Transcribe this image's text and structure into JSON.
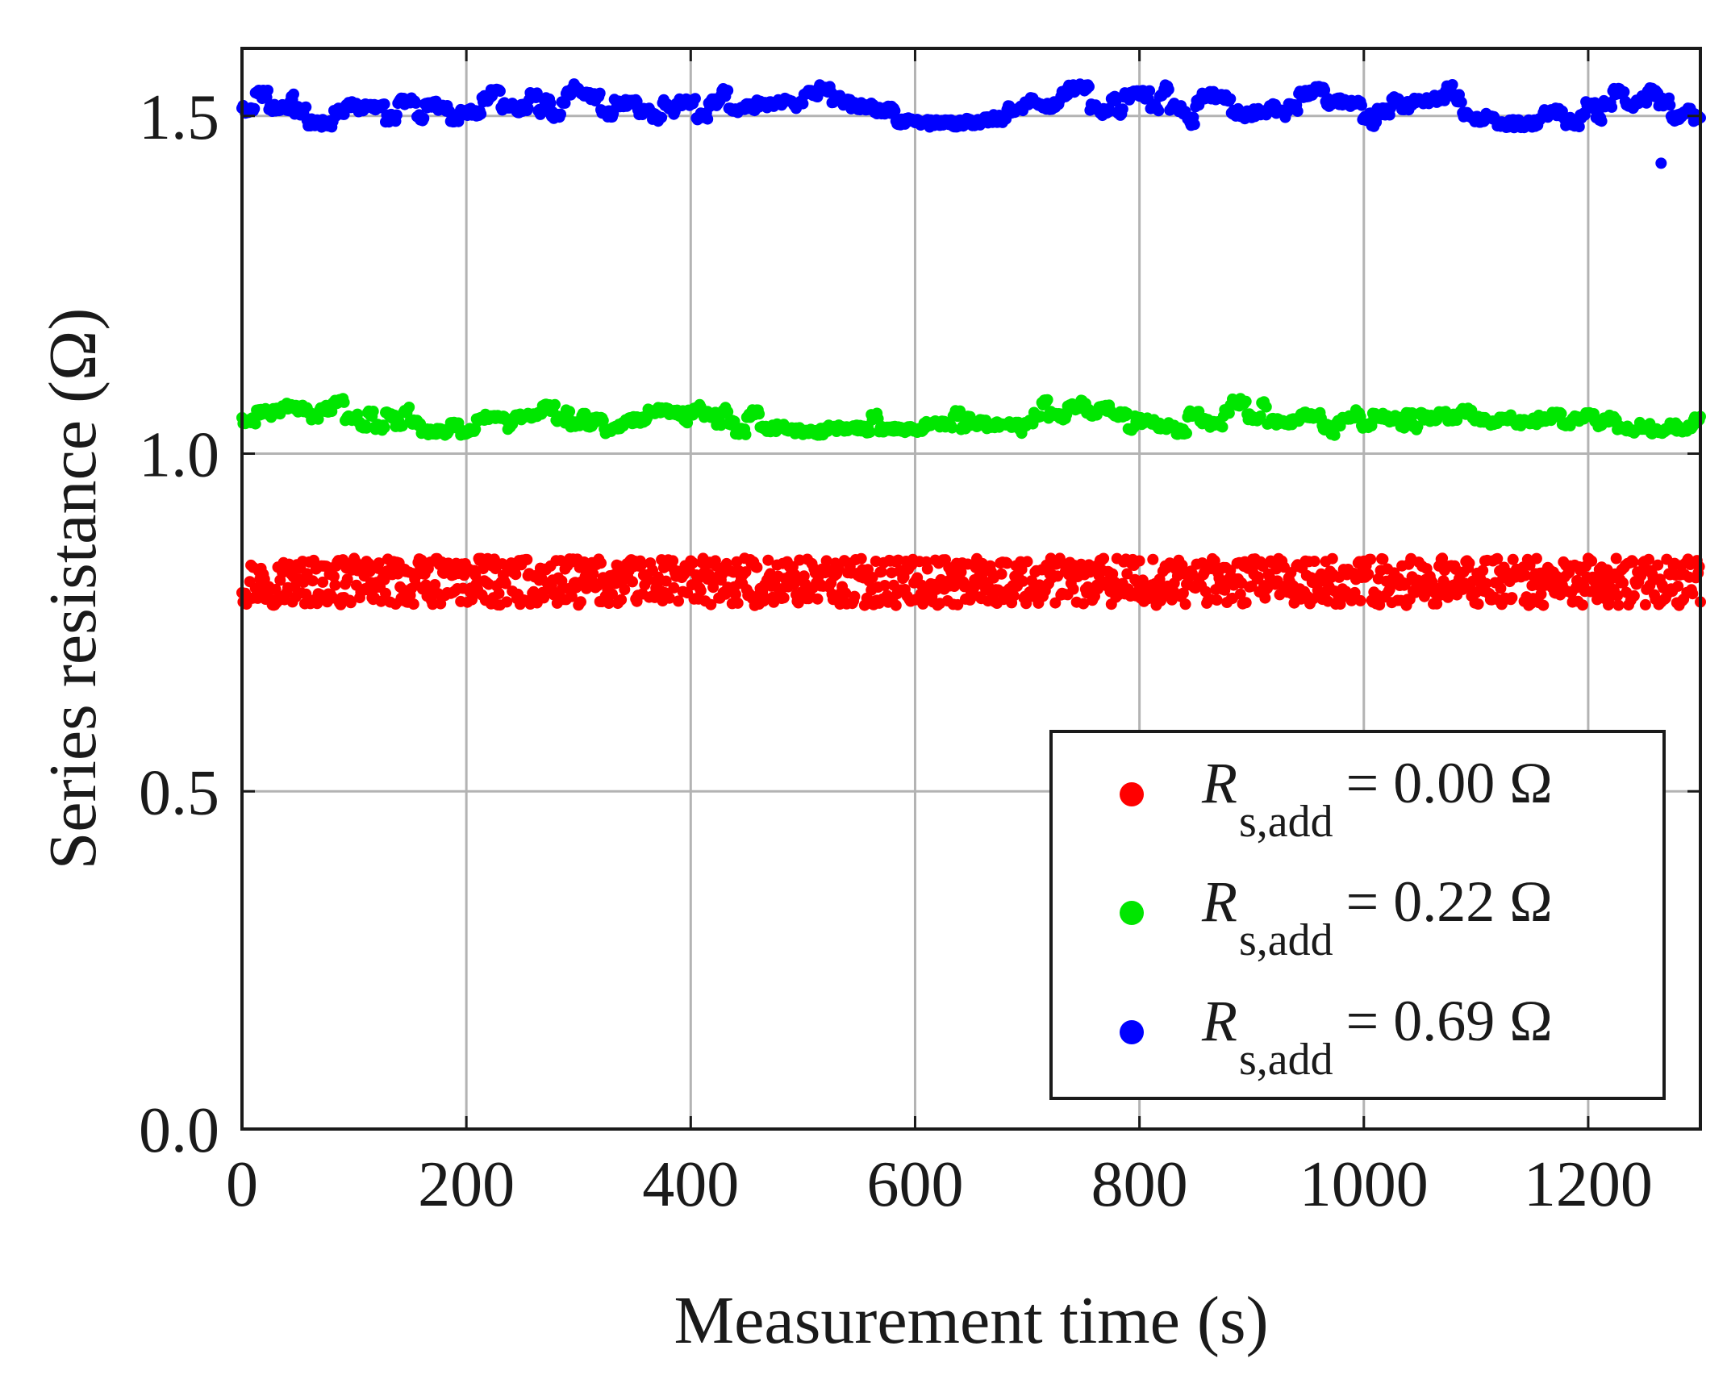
{
  "chart_data": {
    "type": "scatter",
    "title": "",
    "xlabel": "Measurement time (s)",
    "ylabel": "Series resistance (Ω)",
    "xlim": [
      0,
      1300
    ],
    "ylim": [
      0,
      1.6
    ],
    "x_ticks": [
      "0",
      "200",
      "400",
      "600",
      "800",
      "1000",
      "1200"
    ],
    "x_tick_values": [
      0,
      200,
      400,
      600,
      800,
      1000,
      1200
    ],
    "y_ticks": [
      "0.0",
      "0.5",
      "1.0",
      "1.5"
    ],
    "y_tick_values": [
      0,
      0.5,
      1.0,
      1.5
    ],
    "grid": true,
    "legend_position": "bottom-right",
    "sample_interval_s": 1,
    "series": [
      {
        "name": "R_s,add = 0.00 Ω",
        "label_symbol": "R",
        "label_subscript": "s,add",
        "label_value": "= 0.00 Ω",
        "color": "#ff0000",
        "mean": 0.81,
        "spread": 0.035,
        "pattern": "noisy"
      },
      {
        "name": "R_s,add = 0.22 Ω",
        "label_symbol": "R",
        "label_subscript": "s,add",
        "label_value": "= 0.22 Ω",
        "color": "#00e600",
        "mean": 1.055,
        "spread": 0.03,
        "pattern": "stepped"
      },
      {
        "name": "R_s,add = 0.69 Ω",
        "label_symbol": "R",
        "label_subscript": "s,add",
        "label_value": "= 0.69 Ω",
        "color": "#0000ff",
        "mean": 1.515,
        "spread": 0.035,
        "pattern": "stepped",
        "outliers": [
          {
            "x": 1265,
            "y": 1.43
          }
        ]
      }
    ]
  }
}
